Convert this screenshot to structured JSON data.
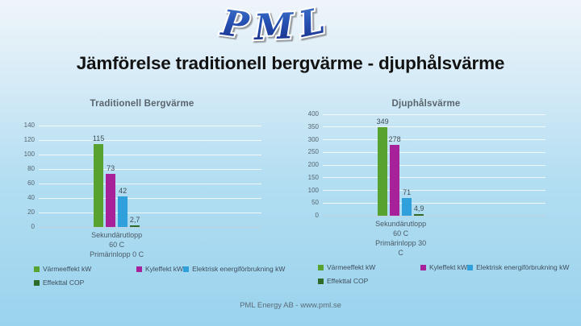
{
  "slide": {
    "logo_text": "PML",
    "title": "Jämförelse traditionell bergvärme - djuphålsvärme",
    "footer": "PML Energy AB - www.pml.se"
  },
  "colors": {
    "background_top": "#eff5fa",
    "background_bottom": "#9ad3ed",
    "logo_blue_dark": "#15277f",
    "logo_blue_light": "#4a7fd4",
    "grid_line": "#e6f1f8",
    "axis_text": "#55646f",
    "slide_title_text": "#131313",
    "chart_title_text": "#5a646c",
    "footer_text": "#5b6b78",
    "series_green": "#58A32F",
    "series_magenta": "#A6219A",
    "series_blue": "#2FA0DB",
    "series_dark_green": "#2E6B28"
  },
  "chart_data": [
    {
      "type": "bar",
      "title": "Traditionell Bergvärme",
      "categories": [
        "Sekundärutlopp 60 C Primärinlopp 0 C"
      ],
      "category_lines": [
        "Sekundärutlopp",
        "60 C",
        "Primärinlopp 0 C"
      ],
      "ylim": [
        0,
        140
      ],
      "yticks": [
        0,
        20,
        40,
        60,
        80,
        100,
        120,
        140
      ],
      "grid": true,
      "legend_position": "bottom",
      "series": [
        {
          "name": "Värmeeffekt kW",
          "value": 115,
          "value_label": "115",
          "color": "#58A32F"
        },
        {
          "name": "Kyleffekt kW",
          "value": 73,
          "value_label": "73",
          "color": "#A6219A"
        },
        {
          "name": "Elektrisk energiförbrukning kW",
          "value": 42,
          "value_label": "42",
          "color": "#2FA0DB"
        },
        {
          "name": "Effekttal COP",
          "value": 2.7,
          "value_label": "2,7",
          "color": "#2E6B28"
        }
      ]
    },
    {
      "type": "bar",
      "title": "Djuphålsvärme",
      "categories": [
        "Sekundärutlopp 60 C Primärinlopp 30 C"
      ],
      "category_lines": [
        "Sekundärutlopp",
        "60 C",
        "Primärinlopp 30",
        "C"
      ],
      "ylim": [
        0,
        400
      ],
      "yticks": [
        0,
        50,
        100,
        150,
        200,
        250,
        300,
        350,
        400
      ],
      "grid": true,
      "legend_position": "bottom",
      "series": [
        {
          "name": "Värmeeffekt kW",
          "value": 349,
          "value_label": "349",
          "color": "#58A32F"
        },
        {
          "name": "Kyleffekt kW",
          "value": 278,
          "value_label": "278",
          "color": "#A6219A"
        },
        {
          "name": "Elektrisk energiförbrukning kW",
          "value": 71,
          "value_label": "71",
          "color": "#2FA0DB"
        },
        {
          "name": "Effekttal COP",
          "value": 4.9,
          "value_label": "4,9",
          "color": "#2E6B28"
        }
      ]
    }
  ]
}
